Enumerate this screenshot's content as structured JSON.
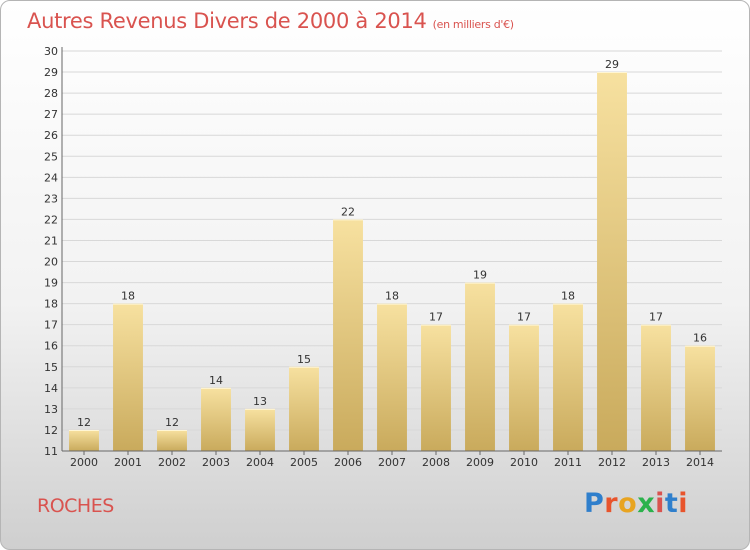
{
  "title": "Autres Revenus Divers de 2000 à 2014",
  "title_unit": "(en milliers d'€)",
  "commune": "ROCHES",
  "logo": {
    "text": "Proxiti",
    "letter_colors": [
      "#2f7fcc",
      "#e8542c",
      "#e8a421",
      "#2bb24c",
      "#d9534f",
      "#2f7fcc",
      "#e8542c"
    ]
  },
  "colors": {
    "title": "#d9534f",
    "bar_light": "#f7e1a0",
    "bar_dark": "#c9aa5c",
    "grid": "#d8d8d8"
  },
  "chart_data": {
    "type": "bar",
    "categories": [
      "2000",
      "2001",
      "2002",
      "2003",
      "2004",
      "2005",
      "2006",
      "2007",
      "2008",
      "2009",
      "2010",
      "2011",
      "2012",
      "2013",
      "2014"
    ],
    "values": [
      12,
      18,
      12,
      14,
      13,
      15,
      22,
      18,
      17,
      19,
      17,
      18,
      29,
      17,
      16
    ],
    "ylim": [
      11,
      30
    ],
    "yticks": [
      11,
      12,
      13,
      14,
      15,
      16,
      17,
      18,
      19,
      20,
      21,
      22,
      23,
      24,
      25,
      26,
      27,
      28,
      29,
      30
    ],
    "grid": true,
    "xlabel": "",
    "ylabel": ""
  }
}
